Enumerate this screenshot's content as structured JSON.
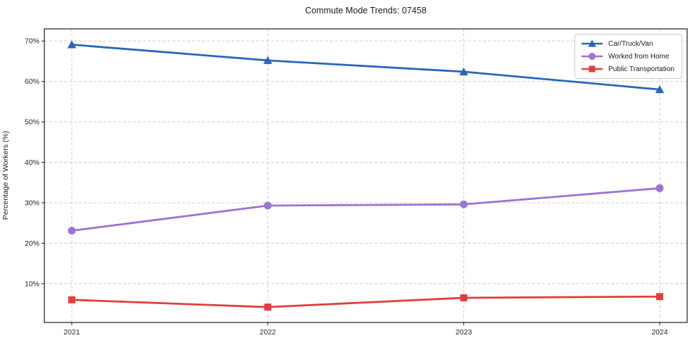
{
  "chart_data": {
    "type": "line",
    "title": "Commute Mode Trends: 07458",
    "xlabel": "",
    "ylabel": "Percentage of Workers (%)",
    "x": [
      2021,
      2022,
      2023,
      2024
    ],
    "xtick_labels": [
      "2021",
      "2022",
      "2023",
      "2024"
    ],
    "series": [
      {
        "name": "Car/Truck/Van",
        "marker": "triangle",
        "color": "#2a67b8",
        "values": [
          69.1,
          65.2,
          62.4,
          58.0
        ]
      },
      {
        "name": "Worked from Home",
        "marker": "circle",
        "color": "#9b74d4",
        "values": [
          23.1,
          29.3,
          29.6,
          33.6
        ]
      },
      {
        "name": "Public Transportation",
        "marker": "square",
        "color": "#e03e3e",
        "values": [
          6.0,
          4.2,
          6.5,
          6.8
        ]
      }
    ],
    "yticks": [
      10,
      20,
      30,
      40,
      50,
      60,
      70
    ],
    "ytick_labels": [
      "10%",
      "20%",
      "30%",
      "40%",
      "50%",
      "60%",
      "70%"
    ],
    "xlim": [
      2020.86,
      2024.14
    ],
    "ylim": [
      0.4,
      73.0
    ],
    "grid": true,
    "grid_style": "dashed",
    "grid_color": "#cccccc",
    "axis_color": "#1a1a1a",
    "tick_label_color": "#262626",
    "legend_position": "upper right"
  }
}
